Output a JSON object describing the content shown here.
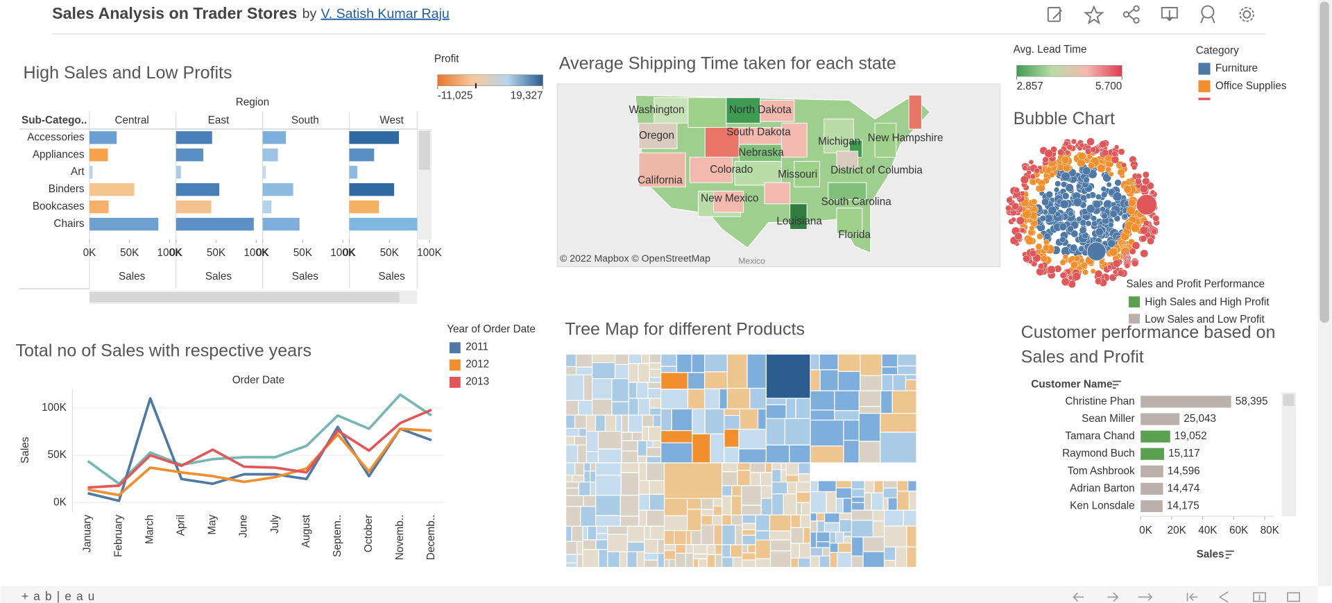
{
  "header": {
    "title": "Sales Analysis on Trader Stores",
    "by": "by",
    "author": "V. Satish Kumar Raju"
  },
  "footer": {
    "logo": "+ a b | e a u"
  },
  "chart_data": [
    {
      "type": "bar",
      "orientation": "horizontal",
      "title": "High Sales and Low Profits",
      "facet_label": "Region",
      "category_label": "Sub-Catego..",
      "x_label": "Sales",
      "categories": [
        "Accessories",
        "Appliances",
        "Art",
        "Binders",
        "Bookcases",
        "Chairs"
      ],
      "series": [
        {
          "name": "Central",
          "values": [
            34000,
            23000,
            4000,
            56000,
            24000,
            86000
          ],
          "colors": [
            "#6a9fd0",
            "#f5a24a",
            "#b9d5ea",
            "#f6c48f",
            "#f6b06a",
            "#6d9fcf"
          ]
        },
        {
          "name": "East",
          "values": [
            45000,
            34000,
            6000,
            54000,
            44000,
            97000
          ],
          "colors": [
            "#4a7fb8",
            "#5a8fc4",
            "#a9cbe5",
            "#4a7fb8",
            "#f5c28f",
            "#5c90c6"
          ]
        },
        {
          "name": "South",
          "values": [
            29000,
            19000,
            4000,
            38000,
            11000,
            46000
          ],
          "colors": [
            "#7eaedb",
            "#9cc3e3",
            "#c3dbee",
            "#8cbbe0",
            "#b3d2ea",
            "#7eaedb"
          ]
        },
        {
          "name": "West",
          "values": [
            62000,
            31000,
            10000,
            56000,
            37000,
            85000
          ],
          "colors": [
            "#2f6aa3",
            "#5a8fc4",
            "#8cbbe0",
            "#2f6aa3",
            "#f5b062",
            "#7eb8e0"
          ]
        }
      ],
      "xlim": [
        0,
        106000
      ],
      "xticks": [
        {
          "value": 0,
          "label": "0K"
        },
        {
          "value": 50000,
          "label": "50K"
        },
        {
          "value": 100000,
          "label": "100K"
        }
      ],
      "color_legend": {
        "title": "Profit",
        "colors": [
          "#e8762b",
          "#f8c89a",
          "#b5d4ea",
          "#2a5d8f"
        ],
        "ticks": [
          {
            "value": -11025,
            "label": "-11,025"
          },
          {
            "value": 19327,
            "label": "19,327"
          }
        ]
      }
    },
    {
      "type": "map",
      "title": "Average Shipping Time taken for each state",
      "states": [
        "Washington",
        "Oregon",
        "California",
        "North Dakota",
        "South Dakota",
        "Nebraska",
        "Colorado",
        "New Mexico",
        "Missouri",
        "Michigan",
        "New Hampshire",
        "District of Columbia",
        "South Carolina",
        "Louisiana",
        "Florida"
      ],
      "attribution": "© 2022 Mapbox © OpenStreetMap",
      "country_label": "Mexico",
      "color_legend": {
        "title": "Avg. Lead Time",
        "colors": [
          "#3e9b52",
          "#b9dca8",
          "#f3b8ae",
          "#dc3d53"
        ],
        "ticks": [
          2.857,
          {
            "value": 5.7,
            "label": "5.700"
          }
        ]
      }
    },
    {
      "type": "bubble",
      "title": "Bubble Chart",
      "legend_title": "Category",
      "categories": [
        "Furniture",
        "Office Supplies"
      ],
      "colors": [
        "#4e79a7",
        "#f28e2b"
      ],
      "outer_color": "#e15759",
      "performance_legend": {
        "title": "Sales and Profit Performance",
        "items": [
          "High Sales and High Profit",
          "Low Sales and Low Profit"
        ],
        "colors": [
          "#59a14f",
          "#bab0ac"
        ]
      }
    },
    {
      "type": "line",
      "title": "Total no of Sales with respective years",
      "x_label": "Order Date",
      "y_label": "Sales",
      "legend_title": "Year of Order Date",
      "categories": [
        "January",
        "February",
        "March",
        "April",
        "May",
        "June",
        "July",
        "August",
        "Septem..",
        "October",
        "Novemb..",
        "Decemb.."
      ],
      "series": [
        {
          "name": "2011",
          "color": "#4e79a7",
          "values": [
            10000,
            2000,
            110000,
            25000,
            20000,
            30000,
            30000,
            25000,
            80000,
            28000,
            78000,
            66000
          ]
        },
        {
          "name": "2012",
          "color": "#f28e2b",
          "values": [
            14000,
            8000,
            37000,
            32000,
            28000,
            22000,
            27000,
            36000,
            72000,
            33000,
            78000,
            76000
          ]
        },
        {
          "name": "2013",
          "color": "#e15759",
          "values": [
            16000,
            18000,
            50000,
            39000,
            56000,
            38000,
            37000,
            32000,
            76000,
            55000,
            84000,
            98000
          ]
        },
        {
          "name": null,
          "color": "#76b7b2",
          "values": [
            44000,
            20000,
            53000,
            40000,
            46000,
            48000,
            48000,
            60000,
            92000,
            78000,
            114000,
            92000
          ]
        }
      ],
      "ylim": [
        -5000,
        120000
      ],
      "yticks": [
        {
          "value": 0,
          "label": "0K"
        },
        {
          "value": 50000,
          "label": "50K"
        },
        {
          "value": 100000,
          "label": "100K"
        }
      ]
    },
    {
      "type": "treemap",
      "title": "Tree Map for different Products",
      "colors": [
        "#a9cbe5",
        "#d9d2c5",
        "#efc58f",
        "#c5dcee",
        "#e6dccb",
        "#f28e2b",
        "#7eaedb",
        "#2c5d8f"
      ]
    },
    {
      "type": "bar",
      "orientation": "horizontal",
      "title": "Customer performance based on Sales and Profit",
      "category_label": "Customer Name",
      "x_label": "Sales",
      "categories": [
        "Christine Phan",
        "Sean Miller",
        "Tamara Chand",
        "Raymond Buch",
        "Tom Ashbrook",
        "Adrian Barton",
        "Ken Lonsdale"
      ],
      "values": [
        58395,
        25043,
        19052,
        15117,
        14596,
        14474,
        14175
      ],
      "value_labels": [
        "58,395",
        "25,043",
        "19,052",
        "15,117",
        "14,596",
        "14,474",
        "14,175"
      ],
      "colors": [
        "#bab0ac",
        "#bab0ac",
        "#59a14f",
        "#59a14f",
        "#bab0ac",
        "#bab0ac",
        "#bab0ac"
      ],
      "xlim": [
        0,
        86000
      ],
      "xticks": [
        {
          "value": 0,
          "label": "0K"
        },
        {
          "value": 20000,
          "label": "20K"
        },
        {
          "value": 40000,
          "label": "40K"
        },
        {
          "value": 60000,
          "label": "60K"
        },
        {
          "value": 80000,
          "label": "80K"
        }
      ]
    }
  ]
}
